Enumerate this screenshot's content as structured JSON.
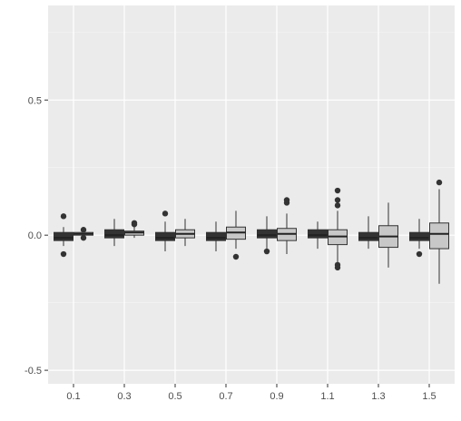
{
  "chart_data": {
    "type": "box",
    "title": "",
    "xlabel": "",
    "ylabel": "",
    "categories": [
      "0.1",
      "0.3",
      "0.5",
      "0.7",
      "0.9",
      "1.1",
      "1.3",
      "1.5"
    ],
    "yticks": [
      -0.5,
      0,
      0.5
    ],
    "ytick_labels": [
      "-0.5",
      "0.0",
      "0.5"
    ],
    "ylim": [
      -0.55,
      0.85
    ],
    "grid": true,
    "legend": "none",
    "series": [
      {
        "fill": "#333333",
        "boxes": [
          {
            "whislo": -0.04,
            "q1": -0.02,
            "med": -0.01,
            "q3": 0.01,
            "whishi": 0.03,
            "fliers": [
              0.07,
              -0.07
            ]
          },
          {
            "whislo": -0.04,
            "q1": -0.01,
            "med": 0.0,
            "q3": 0.02,
            "whishi": 0.06,
            "fliers": []
          },
          {
            "whislo": -0.06,
            "q1": -0.02,
            "med": -0.01,
            "q3": 0.01,
            "whishi": 0.05,
            "fliers": [
              0.08
            ]
          },
          {
            "whislo": -0.06,
            "q1": -0.02,
            "med": -0.01,
            "q3": 0.01,
            "whishi": 0.05,
            "fliers": []
          },
          {
            "whislo": -0.05,
            "q1": -0.01,
            "med": 0.0,
            "q3": 0.02,
            "whishi": 0.07,
            "fliers": [
              -0.06
            ]
          },
          {
            "whislo": -0.05,
            "q1": -0.01,
            "med": 0.0,
            "q3": 0.02,
            "whishi": 0.05,
            "fliers": []
          },
          {
            "whislo": -0.05,
            "q1": -0.02,
            "med": -0.01,
            "q3": 0.01,
            "whishi": 0.07,
            "fliers": []
          },
          {
            "whislo": -0.05,
            "q1": -0.02,
            "med": -0.01,
            "q3": 0.01,
            "whishi": 0.06,
            "fliers": [
              -0.07
            ]
          }
        ]
      },
      {
        "fill": "#c8c8c8",
        "boxes": [
          {
            "whislo": -0.01,
            "q1": 0.0,
            "med": 0.005,
            "q3": 0.01,
            "whishi": 0.015,
            "fliers": [
              0.02,
              -0.01
            ]
          },
          {
            "whislo": -0.01,
            "q1": 0.0,
            "med": 0.01,
            "q3": 0.015,
            "whishi": 0.04,
            "fliers": [
              0.04,
              0.045
            ]
          },
          {
            "whislo": -0.04,
            "q1": -0.01,
            "med": 0.005,
            "q3": 0.02,
            "whishi": 0.06,
            "fliers": []
          },
          {
            "whislo": -0.05,
            "q1": -0.015,
            "med": 0.01,
            "q3": 0.03,
            "whishi": 0.09,
            "fliers": [
              -0.08
            ]
          },
          {
            "whislo": -0.07,
            "q1": -0.02,
            "med": 0.005,
            "q3": 0.025,
            "whishi": 0.08,
            "fliers": [
              0.12,
              0.13
            ]
          },
          {
            "whislo": -0.11,
            "q1": -0.035,
            "med": -0.005,
            "q3": 0.02,
            "whishi": 0.09,
            "fliers": [
              0.11,
              0.13,
              0.165,
              -0.11,
              -0.12
            ]
          },
          {
            "whislo": -0.12,
            "q1": -0.045,
            "med": -0.005,
            "q3": 0.035,
            "whishi": 0.12,
            "fliers": []
          },
          {
            "whislo": -0.18,
            "q1": -0.05,
            "med": 0.005,
            "q3": 0.045,
            "whishi": 0.17,
            "fliers": [
              0.195
            ]
          }
        ]
      }
    ]
  }
}
